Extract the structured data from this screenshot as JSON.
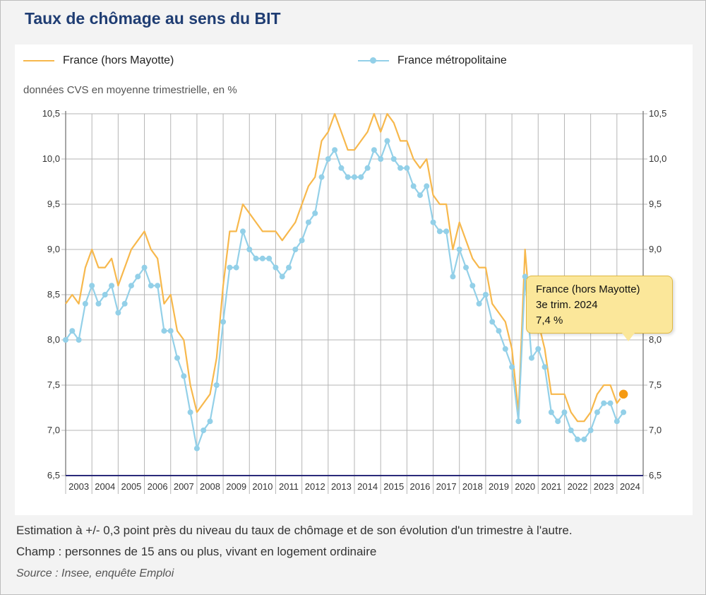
{
  "title": "Taux de chômage au sens du BIT",
  "subtitle": "données CVS en moyenne trimestrielle, en %",
  "legend": [
    {
      "name": "France (hors Mayotte)",
      "color": "#f7b84c",
      "marker": false
    },
    {
      "name": "France métropolitaine",
      "color": "#93d0e8",
      "marker": true
    }
  ],
  "tooltip": {
    "series": "France (hors Mayotte)",
    "period": "3e trim. 2024",
    "value": "7,4 %"
  },
  "footnotes": {
    "estimation": "Estimation à +/- 0,3 point près du niveau du taux de chômage et de son évolution d'un trimestre à l'autre.",
    "champ": "Champ : personnes de 15 ans ou plus, vivant en logement ordinaire",
    "source": "Source : Insee, enquête Emploi"
  },
  "chart_data": {
    "type": "line",
    "title": "Taux de chômage au sens du BIT",
    "subtitle": "données CVS en moyenne trimestrielle, en %",
    "ylim": [
      6.5,
      10.5
    ],
    "y_ticks": [
      "6,5",
      "7,0",
      "7,5",
      "8,0",
      "8,5",
      "9,0",
      "9,5",
      "10,0",
      "10,5"
    ],
    "y_tick_values": [
      6.5,
      7.0,
      7.5,
      8.0,
      8.5,
      9.0,
      9.5,
      10.0,
      10.5
    ],
    "x_start_quarter": "2003 T1",
    "years": [
      "2003",
      "2004",
      "2005",
      "2006",
      "2007",
      "2008",
      "2009",
      "2010",
      "2011",
      "2012",
      "2013",
      "2014",
      "2015",
      "2016",
      "2017",
      "2018",
      "2019",
      "2020",
      "2021",
      "2022",
      "2023",
      "2024"
    ],
    "grid": true,
    "legend_position": "top",
    "series": [
      {
        "name": "France (hors Mayotte)",
        "color": "#f7b84c",
        "values": [
          8.4,
          8.5,
          8.4,
          8.8,
          9.0,
          8.8,
          8.8,
          8.9,
          8.6,
          8.8,
          9.0,
          9.1,
          9.2,
          9.0,
          8.9,
          8.4,
          8.5,
          8.1,
          8.0,
          7.5,
          7.2,
          7.3,
          7.4,
          7.8,
          8.6,
          9.2,
          9.2,
          9.5,
          9.4,
          9.3,
          9.2,
          9.2,
          9.2,
          9.1,
          9.2,
          9.3,
          9.5,
          9.7,
          9.8,
          10.2,
          10.3,
          10.5,
          10.3,
          10.1,
          10.1,
          10.2,
          10.3,
          10.5,
          10.3,
          10.5,
          10.4,
          10.2,
          10.2,
          10.0,
          9.9,
          10.0,
          9.6,
          9.5,
          9.5,
          9.0,
          9.3,
          9.1,
          8.9,
          8.8,
          8.8,
          8.4,
          8.3,
          8.2,
          7.9,
          7.2,
          9.0,
          8.1,
          8.2,
          7.9,
          7.4,
          7.4,
          7.4,
          7.2,
          7.1,
          7.1,
          7.2,
          7.4,
          7.5,
          7.5,
          7.3,
          7.4
        ]
      },
      {
        "name": "France métropolitaine",
        "color": "#93d0e8",
        "values": [
          8.0,
          8.1,
          8.0,
          8.4,
          8.6,
          8.4,
          8.5,
          8.6,
          8.3,
          8.4,
          8.6,
          8.7,
          8.8,
          8.6,
          8.6,
          8.1,
          8.1,
          7.8,
          7.6,
          7.2,
          6.8,
          7.0,
          7.1,
          7.5,
          8.2,
          8.8,
          8.8,
          9.2,
          9.0,
          8.9,
          8.9,
          8.9,
          8.8,
          8.7,
          8.8,
          9.0,
          9.1,
          9.3,
          9.4,
          9.8,
          10.0,
          10.1,
          9.9,
          9.8,
          9.8,
          9.8,
          9.9,
          10.1,
          10.0,
          10.2,
          10.0,
          9.9,
          9.9,
          9.7,
          9.6,
          9.7,
          9.3,
          9.2,
          9.2,
          8.7,
          9.0,
          8.8,
          8.6,
          8.4,
          8.5,
          8.2,
          8.1,
          7.9,
          7.7,
          7.1,
          8.7,
          7.8,
          7.9,
          7.7,
          7.2,
          7.1,
          7.2,
          7.0,
          6.9,
          6.9,
          7.0,
          7.2,
          7.3,
          7.3,
          7.1,
          7.2
        ]
      }
    ],
    "highlight": {
      "series": "France (hors Mayotte)",
      "period": "3e trim. 2024",
      "value": 7.4
    }
  }
}
